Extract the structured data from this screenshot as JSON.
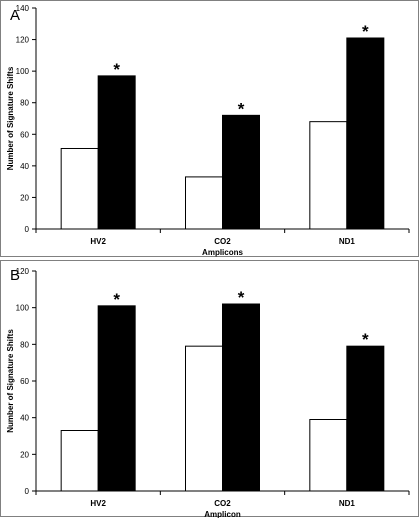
{
  "chart_data": [
    {
      "panel": "A",
      "type": "bar",
      "categories": [
        "HV2",
        "CO2",
        "ND1"
      ],
      "series": [
        {
          "values": [
            51,
            33,
            68
          ],
          "color": "#ffffff"
        },
        {
          "values": [
            97,
            72,
            121
          ],
          "color": "#000000"
        }
      ],
      "annotations": [
        "*",
        "*",
        "*"
      ],
      "xlabel": "Amplicons",
      "ylabel": "Number of Signature Shifts",
      "ylim": [
        0,
        140
      ],
      "yticks": [
        0,
        20,
        40,
        60,
        80,
        100,
        120,
        140
      ],
      "grid": false,
      "legend": "none"
    },
    {
      "panel": "B",
      "type": "bar",
      "categories": [
        "HV2",
        "CO2",
        "ND1"
      ],
      "series": [
        {
          "values": [
            33,
            79,
            39
          ],
          "color": "#ffffff"
        },
        {
          "values": [
            101,
            102,
            79
          ],
          "color": "#000000"
        }
      ],
      "annotations": [
        "*",
        "*",
        "*"
      ],
      "xlabel": "Amplicon",
      "ylabel": "Number of Signature Shifts",
      "ylim": [
        0,
        120
      ],
      "yticks": [
        0,
        20,
        40,
        60,
        80,
        100,
        120
      ],
      "grid": false,
      "legend": "none"
    }
  ]
}
